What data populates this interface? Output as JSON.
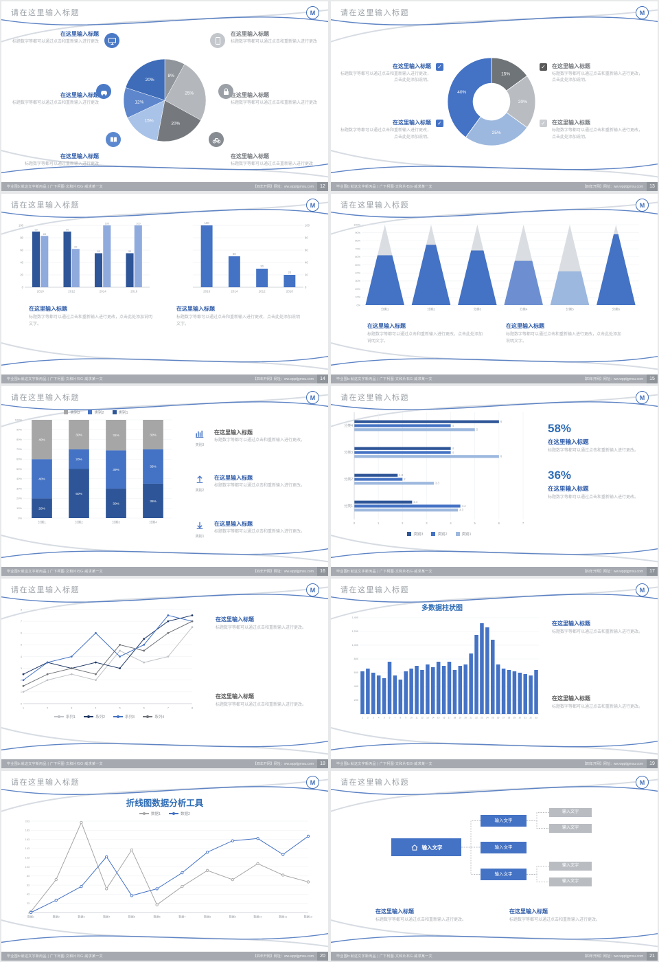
{
  "page": {
    "bg": "#e7e8ea",
    "accent": "#4472c4"
  },
  "common": {
    "slide_title": "请在这里输入标题",
    "logo_text": "M",
    "check_glyph": "✓",
    "footer_left": "毕业围b:就这文字新丙品 | 广下柯图·文和片石G·威求某一文",
    "footer_right": "【四年开网】网址：ww.wpptjgmsu.com"
  },
  "slides": [
    {
      "page_no": "12",
      "left_items": [
        {
          "icon": "monitor",
          "title": "在这里输入标题",
          "text": "标题数字等都可以通过点击和重新输入进行更改"
        },
        {
          "icon": "car",
          "title": "在这里输入标题",
          "text": "标题数字等都可以通过点击和重新输入进行更改"
        },
        {
          "icon": "book",
          "title": "在这里输入标题",
          "text": "标题数字等都可以通过重新输入进行更改"
        }
      ],
      "right_items": [
        {
          "icon": "phone",
          "title": "在这里输入标题",
          "text": "标题数字等都可以通过点击和重新输入进行更改"
        },
        {
          "icon": "lock",
          "title": "在这里输入标题",
          "text": "标题数字等都可以通过点击和重新输入进行更改"
        },
        {
          "icon": "bike",
          "title": "在这里输入标题",
          "text": "标题数字等都可以通过点击重新输入进行更改"
        }
      ],
      "chart": {
        "type": "pie",
        "values": [
          8,
          25,
          20,
          15,
          12,
          20
        ],
        "labels": [
          "8%",
          "25%",
          "20%",
          "15%",
          "12%",
          "20%"
        ],
        "colors": [
          "#8f959b",
          "#b4b8bd",
          "#75797e",
          "#a9c3e8",
          "#5d86cc",
          "#3e6cb8"
        ]
      }
    },
    {
      "page_no": "13",
      "left_items": [
        {
          "check_color": "#4472c4",
          "title": "在这里输入标题",
          "text": "标题数字等都可以通过点击和重新输入进行更改，点击此处添加说明。"
        },
        {
          "check_color": "#4472c4",
          "title": "在这里输入标题",
          "text": "标题数字等都可以通过点击和重新输入进行更改，点击此处添加说明。"
        }
      ],
      "right_items": [
        {
          "check_color": "#595959",
          "title": "在这里输入标题",
          "text": "标题数字等都可以通过点击和重新输入进行更改，点击此处添加说明。"
        },
        {
          "check_color": "#c9cdd2",
          "title": "在这里输入标题",
          "text": "标题数字等都可以通过点击和重新输入进行更改，点击此处添加说明。"
        }
      ],
      "chart": {
        "type": "donut",
        "values": [
          15,
          20,
          25,
          40
        ],
        "labels": [
          "15%",
          "20%",
          "25%",
          "40%"
        ],
        "colors": [
          "#6f7478",
          "#b9bdc2",
          "#9db8de",
          "#4472c4"
        ]
      }
    },
    {
      "page_no": "14",
      "charts": [
        {
          "type": "groupbar",
          "categories": [
            "2010",
            "2012",
            "2014",
            "2016"
          ],
          "ymax": 100,
          "yticks": [
            0,
            20,
            40,
            60,
            80,
            100
          ],
          "series": [
            {
              "color": "#2e5597",
              "values": [
                90,
                90,
                55,
                55
              ]
            },
            {
              "color": "#8faadc",
              "values": [
                83,
                62,
                100,
                100
              ]
            }
          ]
        },
        {
          "type": "bar",
          "axis": "right",
          "categories": [
            "2016",
            "2014",
            "2012",
            "2010"
          ],
          "ymax": 100,
          "yticks": [
            0,
            20,
            40,
            60,
            80,
            100
          ],
          "color": "#4472c4",
          "values": [
            100,
            50,
            30,
            20
          ]
        }
      ],
      "blocks": [
        {
          "title": "在这里输入标题",
          "text": "标题数字等都可以通过点击和重新输入进行更改，点击此处添加说明文字。"
        },
        {
          "title": "在这里输入标题",
          "text": "标题数字等都可以通过点击和重新输入进行更改，点击此处添加说明文字。"
        }
      ]
    },
    {
      "page_no": "15",
      "chart": {
        "type": "pyramid",
        "categories": [
          "分类1",
          "分类2",
          "分类3",
          "分类4",
          "分类5",
          "分类6"
        ],
        "fill_pct": [
          62,
          75,
          68,
          55,
          42,
          88
        ],
        "fill_colors": [
          "#4472c4",
          "#4472c4",
          "#4472c4",
          "#6d8fd1",
          "#9db8de",
          "#4472c4"
        ],
        "top_color": "#dadde2",
        "yticks": [
          "0%",
          "10%",
          "20%",
          "30%",
          "40%",
          "50%",
          "60%",
          "70%",
          "80%",
          "90%",
          "100%"
        ]
      },
      "blocks": [
        {
          "title": "在这里输入标题",
          "text": "标题数字等都可以通过点击和重新输入进行更改，点击此处添加说明文字。"
        },
        {
          "title": "在这里输入标题",
          "text": "标题数字等都可以通过点击和重新输入进行更改，点击此处添加说明文字。"
        }
      ]
    },
    {
      "page_no": "16",
      "legend": [
        {
          "label": "类别3",
          "color": "#a6a6a6"
        },
        {
          "label": "类别2",
          "color": "#4472c4"
        },
        {
          "label": "类别1",
          "color": "#2e5597"
        }
      ],
      "chart": {
        "type": "stacked",
        "categories": [
          "分类1",
          "分类2",
          "分类3",
          "分类4"
        ],
        "colors": [
          "#2e5597",
          "#4472c4",
          "#a6a6a6"
        ],
        "stacks": [
          [
            20,
            40,
            40
          ],
          [
            50,
            20,
            30
          ],
          [
            30,
            39,
            31
          ],
          [
            35,
            35,
            30
          ]
        ],
        "yticks": [
          "0%",
          "10%",
          "20%",
          "30%",
          "40%",
          "50%",
          "60%",
          "70%",
          "80%",
          "90%",
          "100%"
        ]
      },
      "right_items": [
        {
          "icon": "bar-chart",
          "icon_label": "类别3",
          "title_color": "#595959",
          "title": "在这里输入标题",
          "text": "标题数字等都可以通过点击和重新输入进行更改。"
        },
        {
          "icon": "arrow-up",
          "icon_label": "类别2",
          "title_color": "#2e5ba8",
          "title": "在这里输入标题",
          "text": "标题数字等都可以通过点击和重新输入进行更改。"
        },
        {
          "icon": "arrow-down",
          "icon_label": "类别1",
          "title_color": "#2e5ba8",
          "title": "在这里输入标题",
          "text": "标题数字等都可以通过点击和重新输入进行更改。"
        }
      ]
    },
    {
      "page_no": "17",
      "chart": {
        "type": "hbar",
        "rows": [
          {
            "cat": "分类4",
            "values": [
              6,
              4,
              5
            ]
          },
          {
            "cat": "分类3",
            "values": [
              4,
              4,
              6
            ]
          },
          {
            "cat": "分类2",
            "values": [
              1.8,
              2,
              3.3
            ]
          },
          {
            "cat": "分类1",
            "values": [
              2.4,
              4.4,
              4.3
            ]
          }
        ],
        "colors": [
          "#2e5597",
          "#4472c4",
          "#9db8de"
        ],
        "xticks": [
          0,
          1,
          2,
          3,
          4,
          5,
          6,
          7
        ],
        "xmax": 7
      },
      "legend": [
        {
          "label": "类别3",
          "color": "#2e5597"
        },
        {
          "label": "类别2",
          "color": "#4472c4"
        },
        {
          "label": "类别1",
          "color": "#9db8de"
        }
      ],
      "stats": [
        {
          "pct": "58%",
          "title": "在这里输入标题",
          "text": "标题数字等都可以通过点击和重新输入进行更改。"
        },
        {
          "pct": "36%",
          "title": "在这里输入标题",
          "text": "标题数字等都可以通过点击和重新输入进行更改。"
        }
      ]
    },
    {
      "page_no": "18",
      "chart": {
        "type": "line",
        "x": [
          "1",
          "2",
          "3",
          "4",
          "5",
          "6",
          "7",
          "8"
        ],
        "ymin": 0,
        "ymax": 8,
        "yticks": [
          0,
          1,
          2,
          3,
          4,
          5,
          6,
          7,
          8
        ],
        "series": [
          {
            "name": "系列1",
            "color": "#c0c3c7",
            "values": [
              1,
              2,
              2.5,
              2,
              4.5,
              3.5,
              4,
              6.5
            ]
          },
          {
            "name": "系列2",
            "color": "#1f3864",
            "values": [
              2.5,
              3.5,
              3,
              3.5,
              3,
              5.5,
              7,
              7.5
            ]
          },
          {
            "name": "系列3",
            "color": "#4472c4",
            "values": [
              2,
              3.5,
              4,
              6,
              4,
              5,
              7.5,
              7
            ]
          },
          {
            "name": "系列4",
            "color": "#6f7377",
            "values": [
              1.5,
              2.5,
              3,
              2.5,
              5,
              4.5,
              6,
              7
            ]
          }
        ]
      },
      "legend": [
        {
          "label": "系列1",
          "color": "#c0c3c7"
        },
        {
          "label": "系列2",
          "color": "#1f3864"
        },
        {
          "label": "系列3",
          "color": "#4472c4"
        },
        {
          "label": "系列4",
          "color": "#6f7377"
        }
      ],
      "blocks": [
        {
          "title_color": "#2e5ba8",
          "title": "在这里输入标题",
          "text": "标题数字等都可以通过点击和重新输入进行更改。"
        },
        {
          "title_color": "#595959",
          "title": "在这里输入标题",
          "text": "标题数字等都可以通过点击和重新输入进行更改。"
        }
      ]
    },
    {
      "page_no": "19",
      "chart_title": "多数据柱状图",
      "chart": {
        "type": "columns",
        "color": "#4472c4",
        "ymax": 1400,
        "yticks": [
          200,
          400,
          600,
          800,
          1000,
          1200,
          1400
        ],
        "ytick_labels": [
          "200",
          "400",
          "600",
          "800",
          "1,000",
          "1,200",
          "1,400"
        ],
        "values": [
          620,
          660,
          600,
          560,
          520,
          760,
          560,
          500,
          620,
          660,
          700,
          640,
          720,
          680,
          760,
          700,
          760,
          640,
          700,
          720,
          880,
          1150,
          1320,
          1260,
          1080,
          720,
          660,
          640,
          620,
          600,
          580,
          560,
          640
        ],
        "x_labels": [
          "1",
          "2",
          "3",
          "4",
          "5",
          "6",
          "7",
          "8",
          "9",
          "10",
          "11",
          "12",
          "13",
          "14",
          "15",
          "16",
          "17",
          "18",
          "19",
          "20",
          "21",
          "22",
          "23",
          "24",
          "25",
          "26",
          "27",
          "28",
          "29",
          "30",
          "31",
          "32",
          "33"
        ]
      },
      "blocks": [
        {
          "title_color": "#2e5ba8",
          "title": "在这里输入标题",
          "text": "标题数字等都可以通过点击和重新输入进行更改。"
        },
        {
          "title_color": "#595959",
          "title": "在这里输入标题",
          "text": "标题数字等都可以通过点击和重新输入进行更改。"
        }
      ]
    },
    {
      "page_no": "20",
      "chart_title": "折线图数据分析工具",
      "legend": [
        {
          "label": "数据1",
          "color": "#a6a6a6"
        },
        {
          "label": "数据2",
          "color": "#4472c4"
        }
      ],
      "chart": {
        "type": "line2",
        "x": [
          "数据1",
          "数据2",
          "数据3",
          "数据4",
          "数据5",
          "数据6",
          "数据7",
          "数据8",
          "数据9",
          "数据10",
          "数据11",
          "数据12"
        ],
        "ymin": 3,
        "ymax": 203,
        "yticks": [
          3,
          23,
          43,
          63,
          83,
          103,
          123,
          143,
          163,
          183,
          203
        ],
        "series": [
          {
            "name": "数据1",
            "color": "#a6a6a6",
            "values": [
              5,
              75,
              200,
              55,
              140,
              20,
              60,
              95,
              75,
              110,
              85,
              70
            ]
          },
          {
            "name": "数据2",
            "color": "#4472c4",
            "values": [
              3,
              30,
              60,
              125,
              40,
              55,
              90,
              135,
              160,
              165,
              130,
              170
            ]
          }
        ]
      }
    },
    {
      "page_no": "21",
      "root": {
        "icon": "home",
        "label": "输入文字"
      },
      "mid_boxes": [
        "输入文字",
        "输入文字",
        "输入文字"
      ],
      "leaf_boxes": [
        "输入文字",
        "输入文字",
        "输入文字",
        "输入文字"
      ],
      "blocks": [
        {
          "title": "在这里输入标题",
          "text": "标题数字等都可以通过点击和重新输入进行更改。"
        },
        {
          "title": "在这里输入标题",
          "text": "标题数字等都可以通过点击和重新输入进行更改。"
        }
      ]
    }
  ]
}
